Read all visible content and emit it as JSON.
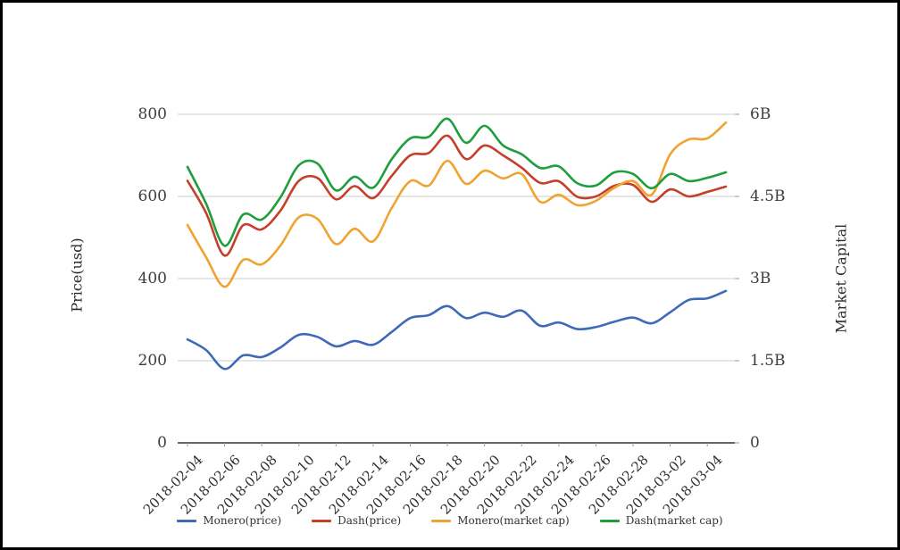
{
  "chart_data": {
    "type": "line",
    "title": "",
    "left_axis": {
      "label": "Price(usd)",
      "ticks": [
        0,
        200,
        400,
        600,
        800
      ],
      "tick_labels": [
        "0",
        "200",
        "400",
        "600",
        "800"
      ],
      "ylim": [
        0,
        800
      ]
    },
    "right_axis": {
      "label": "Market Capital",
      "ticks": [
        0,
        1.5,
        3,
        4.5,
        6
      ],
      "tick_labels": [
        "0",
        "1.5B",
        "3B",
        "4.5B",
        "6B"
      ],
      "ylim_billions": [
        0,
        6
      ]
    },
    "x": [
      "2018-02-04",
      "2018-02-05",
      "2018-02-06",
      "2018-02-07",
      "2018-02-08",
      "2018-02-09",
      "2018-02-10",
      "2018-02-11",
      "2018-02-12",
      "2018-02-13",
      "2018-02-14",
      "2018-02-15",
      "2018-02-16",
      "2018-02-17",
      "2018-02-18",
      "2018-02-19",
      "2018-02-20",
      "2018-02-21",
      "2018-02-22",
      "2018-02-23",
      "2018-02-24",
      "2018-02-25",
      "2018-02-26",
      "2018-02-27",
      "2018-02-28",
      "2018-03-01",
      "2018-03-02",
      "2018-03-03",
      "2018-03-04",
      "2018-03-05"
    ],
    "x_tick_labels": [
      "2018-02-04",
      "2018-02-06",
      "2018-02-08",
      "2018-02-10",
      "2018-02-12",
      "2018-02-14",
      "2018-02-16",
      "2018-02-18",
      "2018-02-20",
      "2018-02-22",
      "2018-02-24",
      "2018-02-26",
      "2018-02-28",
      "2018-03-02",
      "2018-03-04"
    ],
    "x_tick_indices": [
      0,
      2,
      4,
      6,
      8,
      10,
      12,
      14,
      16,
      18,
      20,
      22,
      24,
      26,
      28
    ],
    "grid": true,
    "legend_position": "bottom",
    "series": [
      {
        "name": "Monero(price)",
        "axis": "left",
        "color": "#3f6ab8",
        "values": [
          252,
          226,
          180,
          213,
          209,
          232,
          263,
          258,
          235,
          248,
          239,
          270,
          304,
          311,
          333,
          304,
          317,
          307,
          322,
          285,
          293,
          277,
          282,
          295,
          305,
          291,
          318,
          348,
          352,
          370
        ]
      },
      {
        "name": "Dash(price)",
        "axis": "left",
        "color": "#c4402b",
        "values": [
          638,
          560,
          456,
          530,
          520,
          565,
          638,
          645,
          593,
          625,
          596,
          650,
          700,
          706,
          748,
          691,
          724,
          700,
          670,
          633,
          637,
          599,
          600,
          626,
          628,
          587,
          617,
          600,
          611,
          624
        ]
      },
      {
        "name": "Monero(market cap)",
        "axis": "right",
        "unit": "billion",
        "color": "#f0a330",
        "values": [
          3.98,
          3.39,
          2.85,
          3.34,
          3.26,
          3.6,
          4.12,
          4.09,
          3.63,
          3.91,
          3.68,
          4.29,
          4.78,
          4.7,
          5.15,
          4.73,
          4.97,
          4.83,
          4.91,
          4.4,
          4.53,
          4.34,
          4.42,
          4.66,
          4.78,
          4.53,
          5.27,
          5.54,
          5.56,
          5.85
        ]
      },
      {
        "name": "Dash(market cap)",
        "axis": "right",
        "unit": "billion",
        "color": "#1f9e3e",
        "values": [
          5.04,
          4.37,
          3.6,
          4.17,
          4.08,
          4.48,
          5.07,
          5.1,
          4.61,
          4.86,
          4.66,
          5.18,
          5.56,
          5.59,
          5.92,
          5.48,
          5.79,
          5.43,
          5.27,
          5.02,
          5.05,
          4.74,
          4.7,
          4.94,
          4.91,
          4.65,
          4.91,
          4.78,
          4.84,
          4.94
        ]
      }
    ],
    "colors": {
      "grid": "#cccccc",
      "axis_line": "#333333",
      "tick_text": "#3c3c3c",
      "label_text": "#2b2b2b"
    }
  }
}
